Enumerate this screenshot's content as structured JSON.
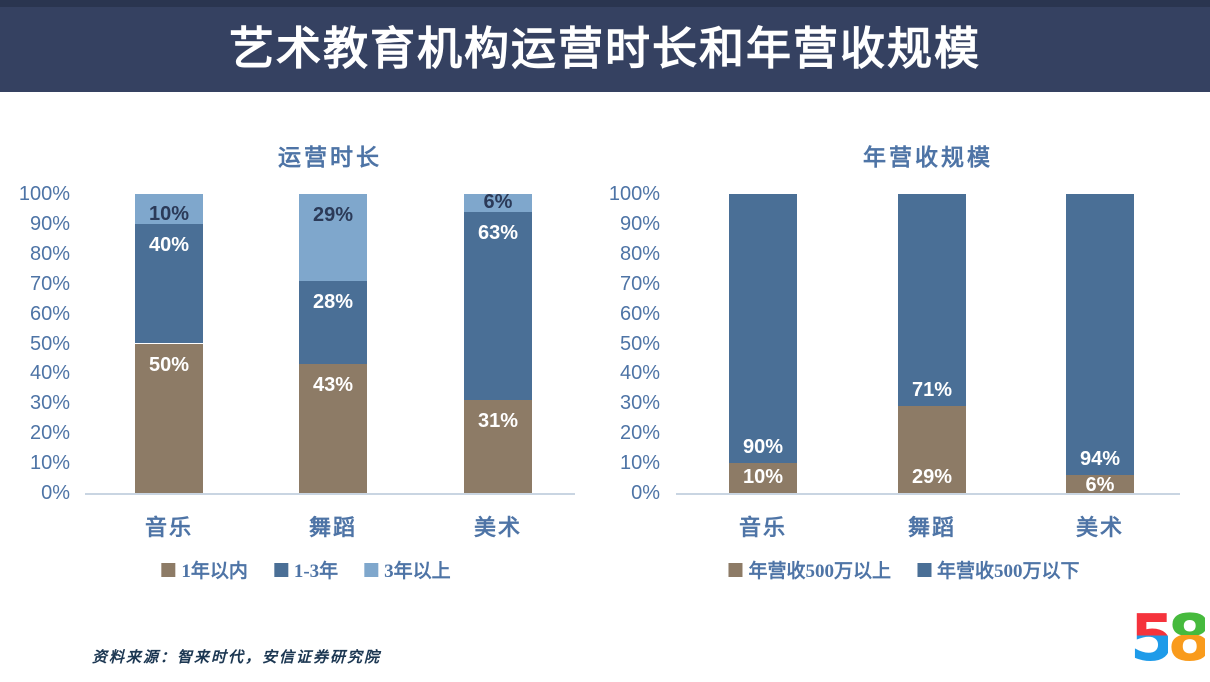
{
  "header": {
    "title": "艺术教育机构运营时长和年营收规模"
  },
  "chart_data": [
    {
      "type": "bar",
      "subtype": "stacked-percent",
      "title": "运营时长",
      "categories": [
        "音乐",
        "舞蹈",
        "美术"
      ],
      "series": [
        {
          "name": "1年以内",
          "color": "#8D7B66",
          "label_color": "#FFFFFF",
          "values": [
            50,
            43,
            31
          ]
        },
        {
          "name": "1-3年",
          "color": "#4A6F96",
          "label_color": "#FFFFFF",
          "values": [
            40,
            28,
            63
          ]
        },
        {
          "name": "3年以上",
          "color": "#7FA7CC",
          "label_color": "#2B3A58",
          "values": [
            10,
            29,
            6
          ]
        }
      ],
      "ylim": [
        0,
        100
      ],
      "ytick_step": 10,
      "ytick_format": "percent",
      "grid": false,
      "legend_position": "bottom",
      "label_position": "inside-end"
    },
    {
      "type": "bar",
      "subtype": "stacked-percent",
      "title": "年营收规模",
      "categories": [
        "音乐",
        "舞蹈",
        "美术"
      ],
      "series": [
        {
          "name": "年营收500万以上",
          "color": "#8D7B66",
          "label_color": "#FFFFFF",
          "values": [
            10,
            29,
            6
          ]
        },
        {
          "name": "年营收500万以下",
          "color": "#4A6F96",
          "label_color": "#FFFFFF",
          "values": [
            90,
            71,
            94
          ]
        }
      ],
      "ylim": [
        0,
        100
      ],
      "ytick_step": 10,
      "ytick_format": "percent",
      "grid": false,
      "legend_position": "bottom",
      "label_position": "inside-base"
    }
  ],
  "source": {
    "text": "资料来源：智来时代，安信证券研究院"
  },
  "logo": {
    "digit_five": "5",
    "digit_eight": "8"
  },
  "palette": {
    "header_bg": "#354161",
    "header_top": "#2A3550",
    "text_blue": "#4E74A6",
    "axis_line": "#C9D5E2",
    "source_text": "#1C3752",
    "series_brown": "#8D7B66",
    "series_dark_blue": "#4A6F96",
    "series_light_blue": "#7FA7CC",
    "logo_red": "#F5333C",
    "logo_blue": "#1E9BE9",
    "logo_green": "#46BA3D",
    "logo_orange": "#F99B1C"
  }
}
